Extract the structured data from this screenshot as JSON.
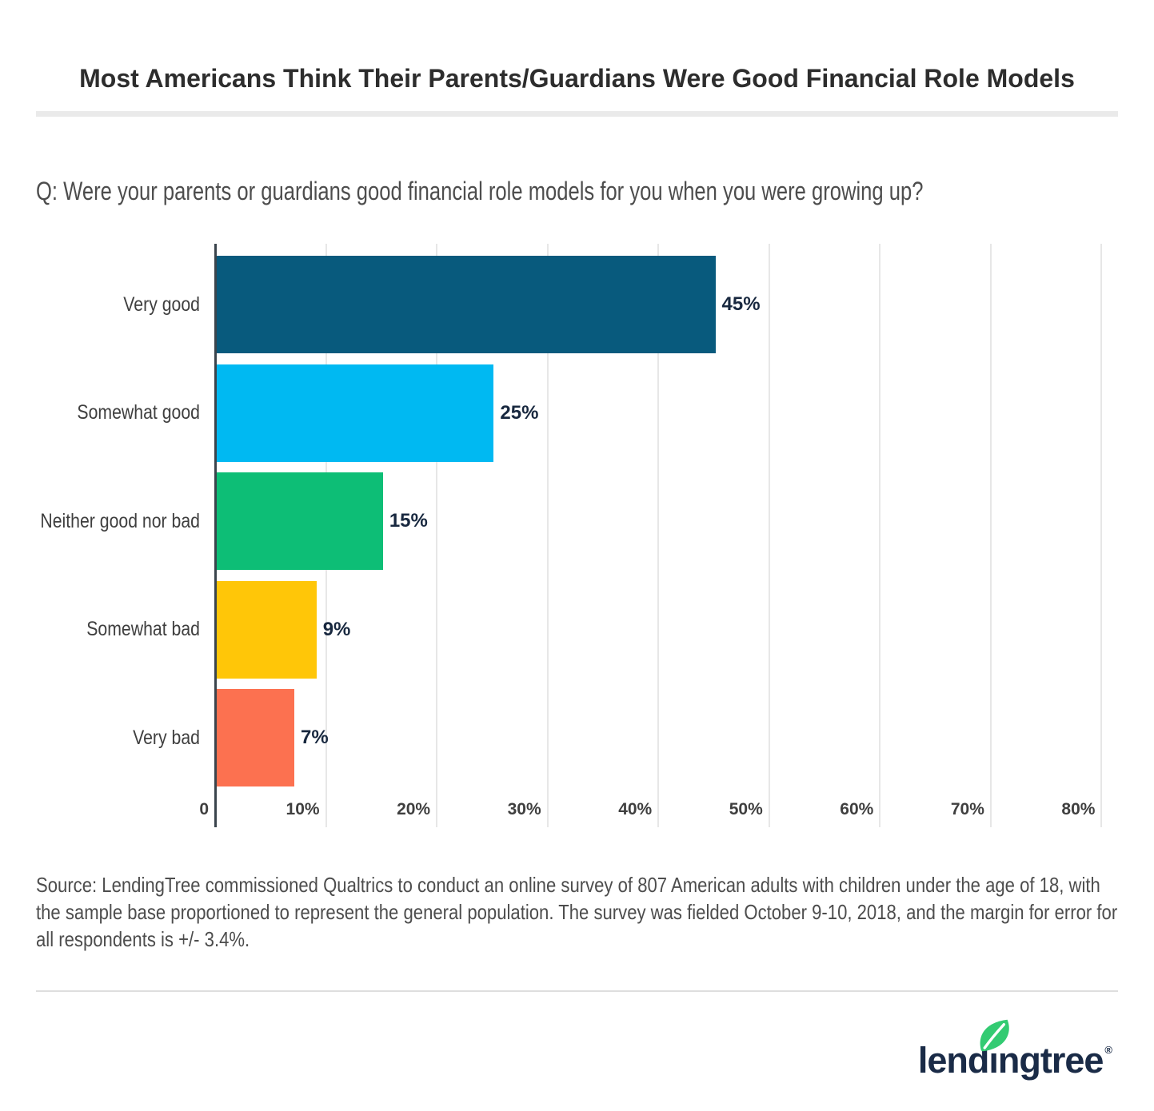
{
  "header": {
    "title": "Most Americans Think Their Parents/Guardians Were Good Financial Role Models",
    "question": "Q: Were your parents or guardians good financial role models for you when you were growing up?"
  },
  "chart_data": {
    "type": "bar",
    "orientation": "horizontal",
    "title": "",
    "xlabel": "",
    "ylabel": "",
    "categories": [
      "Very good",
      "Somewhat good",
      "Neither good nor bad",
      "Somewhat bad",
      "Very bad"
    ],
    "values": [
      45,
      25,
      15,
      9,
      7
    ],
    "value_labels": [
      "45%",
      "25%",
      "15%",
      "9%",
      "7%"
    ],
    "bar_colors": [
      "#085a7d",
      "#00b9f2",
      "#0dbe76",
      "#ffc608",
      "#fc7150"
    ],
    "x_ticks": [
      0,
      10,
      20,
      30,
      40,
      50,
      60,
      70,
      80
    ],
    "x_tick_labels": [
      "0",
      "10%",
      "20%",
      "30%",
      "40%",
      "50%",
      "60%",
      "70%",
      "80%"
    ],
    "xlim": [
      0,
      81.7
    ],
    "grid": true,
    "legend": "none",
    "axis_color": "#3a444c",
    "gridline_color": "#e7e7e7",
    "value_label_color": "#18283f",
    "category_label_color": "#3f3f3f",
    "tick_label_color": "#3f3f3f"
  },
  "source": {
    "text": "Source: LendingTree commissioned Qualtrics to conduct an online survey of 807 American adults with children under the age of 18, with the sample base proportioned to represent the general population. The survey was fielded October 9-10, 2018, and the margin for error for all respondents is +/- 3.4%."
  },
  "footer": {
    "logo": {
      "word_prefix": "lend",
      "dotless_i": "ı",
      "word_suffix": "ngtree",
      "registered": "®",
      "text_color": "#1a2b47",
      "leaf_color": "#33cb72"
    }
  }
}
